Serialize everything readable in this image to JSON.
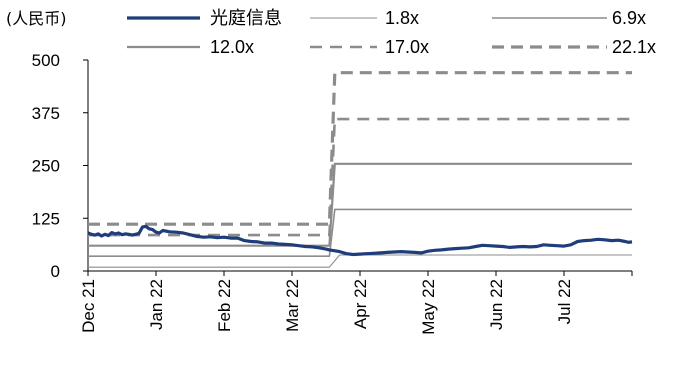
{
  "chart_data": {
    "type": "line",
    "unit_label": "(人民币)",
    "x_tick_labels": [
      "Dec 21",
      "Jan 22",
      "Feb 22",
      "Mar 22",
      "Apr 22",
      "May 22",
      "Jun 22",
      "Jul 22"
    ],
    "y_ticks": [
      0,
      125,
      250,
      375,
      500
    ],
    "ylim": [
      0,
      500
    ],
    "x_domain": [
      0,
      8.0
    ],
    "series": [
      {
        "name": "光庭信息",
        "color": "#1f3d7a",
        "dash": "solid",
        "width": 3.2,
        "x": [
          0.0,
          0.05,
          0.1,
          0.15,
          0.2,
          0.25,
          0.3,
          0.35,
          0.4,
          0.45,
          0.5,
          0.55,
          0.6,
          0.65,
          0.7,
          0.75,
          0.8,
          0.85,
          0.9,
          0.95,
          1.0,
          1.05,
          1.1,
          1.2,
          1.3,
          1.4,
          1.5,
          1.6,
          1.7,
          1.8,
          1.9,
          2.0,
          2.1,
          2.2,
          2.3,
          2.4,
          2.5,
          2.6,
          2.7,
          2.8,
          2.9,
          3.0,
          3.1,
          3.2,
          3.3,
          3.4,
          3.5,
          3.55,
          3.62,
          3.7,
          3.8,
          3.9,
          4.0,
          4.1,
          4.2,
          4.3,
          4.4,
          4.5,
          4.6,
          4.7,
          4.8,
          4.9,
          5.0,
          5.1,
          5.2,
          5.3,
          5.4,
          5.5,
          5.6,
          5.7,
          5.8,
          5.9,
          6.0,
          6.1,
          6.2,
          6.3,
          6.4,
          6.5,
          6.6,
          6.7,
          6.8,
          6.9,
          7.0,
          7.1,
          7.2,
          7.3,
          7.4,
          7.5,
          7.6,
          7.7,
          7.8,
          7.9,
          7.95,
          8.0
        ],
        "y": [
          90,
          87,
          85,
          88,
          83,
          87,
          84,
          91,
          88,
          90,
          86,
          88,
          87,
          85,
          87,
          89,
          104,
          106,
          100,
          98,
          92,
          90,
          96,
          93,
          92,
          90,
          86,
          82,
          80,
          81,
          79,
          80,
          78,
          78,
          72,
          70,
          69,
          66,
          66,
          64,
          63,
          62,
          60,
          58,
          57,
          55,
          52,
          50,
          48,
          46,
          41,
          39,
          40,
          41,
          42,
          43,
          44,
          45,
          46,
          45,
          44,
          43,
          47,
          49,
          50,
          52,
          53,
          54,
          55,
          58,
          61,
          60,
          59,
          58,
          56,
          57,
          58,
          57,
          58,
          62,
          61,
          60,
          59,
          62,
          70,
          72,
          73,
          75,
          74,
          72,
          73,
          70,
          68,
          69
        ],
        "labels": [
          "光庭信息"
        ]
      },
      {
        "name": "1.8x",
        "color": "#8c8c8c",
        "dash": "solid",
        "width": 1.1,
        "x": [
          0,
          3.55,
          3.7,
          8.0
        ],
        "y": [
          9,
          9,
          38,
          38
        ],
        "labels": [
          "1.8x"
        ]
      },
      {
        "name": "6.9x",
        "color": "#8c8c8c",
        "dash": "solid",
        "width": 1.6,
        "x": [
          0,
          3.55,
          3.63,
          8.0
        ],
        "y": [
          35,
          35,
          146,
          146
        ],
        "labels": [
          "6.9x"
        ]
      },
      {
        "name": "12.0x",
        "color": "#8c8c8c",
        "dash": "solid",
        "width": 2.2,
        "x": [
          0,
          3.55,
          3.63,
          8.0
        ],
        "y": [
          60,
          60,
          254,
          254
        ],
        "labels": [
          "12.0x"
        ]
      },
      {
        "name": "17.0x",
        "color": "#8c8c8c",
        "dash": "dashed",
        "width": 2.6,
        "x": [
          0,
          3.55,
          3.63,
          8.0
        ],
        "y": [
          85,
          85,
          360,
          360
        ],
        "labels": [
          "17.0x"
        ]
      },
      {
        "name": "22.1x",
        "color": "#8c8c8c",
        "dash": "dashed",
        "width": 3.2,
        "x": [
          0,
          3.55,
          3.63,
          8.0
        ],
        "y": [
          111,
          111,
          470,
          470
        ],
        "labels": [
          "22.1x"
        ]
      }
    ],
    "grid": false,
    "legend_position": "top"
  }
}
